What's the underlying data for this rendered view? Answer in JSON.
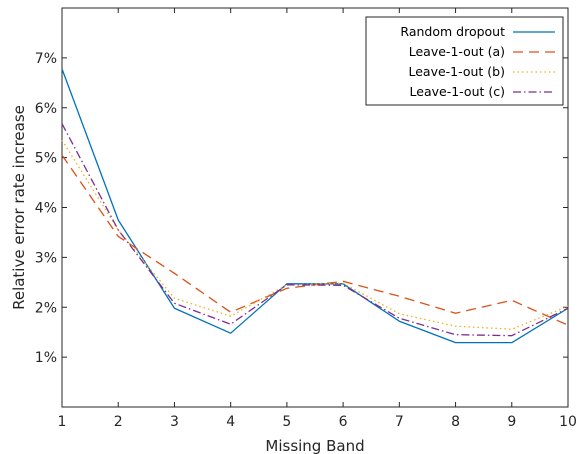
{
  "chart_data": {
    "type": "line",
    "title": "",
    "xlabel": "Missing Band",
    "ylabel": "Relative error rate increase",
    "x": [
      1,
      2,
      3,
      4,
      5,
      6,
      7,
      8,
      9,
      10
    ],
    "xlim": [
      1,
      10
    ],
    "ylim": [
      0,
      8
    ],
    "x_ticks": [
      "1",
      "2",
      "3",
      "4",
      "5",
      "6",
      "7",
      "8",
      "9",
      "10"
    ],
    "y_ticks": [
      {
        "value": 1,
        "label": "1%"
      },
      {
        "value": 2,
        "label": "2%"
      },
      {
        "value": 3,
        "label": "3%"
      },
      {
        "value": 4,
        "label": "4%"
      },
      {
        "value": 5,
        "label": "5%"
      },
      {
        "value": 6,
        "label": "6%"
      },
      {
        "value": 7,
        "label": "7%"
      }
    ],
    "grid": false,
    "legend_position": "top-right",
    "series": [
      {
        "name": "Random dropout",
        "color": "#0072BD",
        "dash": "solid",
        "values": [
          6.78,
          3.75,
          1.98,
          1.48,
          2.47,
          2.47,
          1.72,
          1.29,
          1.29,
          1.98
        ]
      },
      {
        "name": "Leave-1-out (a)",
        "color": "#D95319",
        "dash": "dashed",
        "values": [
          5.05,
          3.42,
          2.68,
          1.9,
          2.38,
          2.52,
          2.22,
          1.88,
          2.14,
          1.64
        ]
      },
      {
        "name": "Leave-1-out (b)",
        "color": "#EDB120",
        "dash": "dotted",
        "values": [
          5.35,
          3.55,
          2.18,
          1.82,
          2.45,
          2.48,
          1.87,
          1.62,
          1.56,
          2.02
        ]
      },
      {
        "name": "Leave-1-out (c)",
        "color": "#7E2F8E",
        "dash": "dashdot",
        "values": [
          5.68,
          3.55,
          2.08,
          1.66,
          2.45,
          2.44,
          1.78,
          1.45,
          1.43,
          1.98
        ]
      }
    ]
  }
}
